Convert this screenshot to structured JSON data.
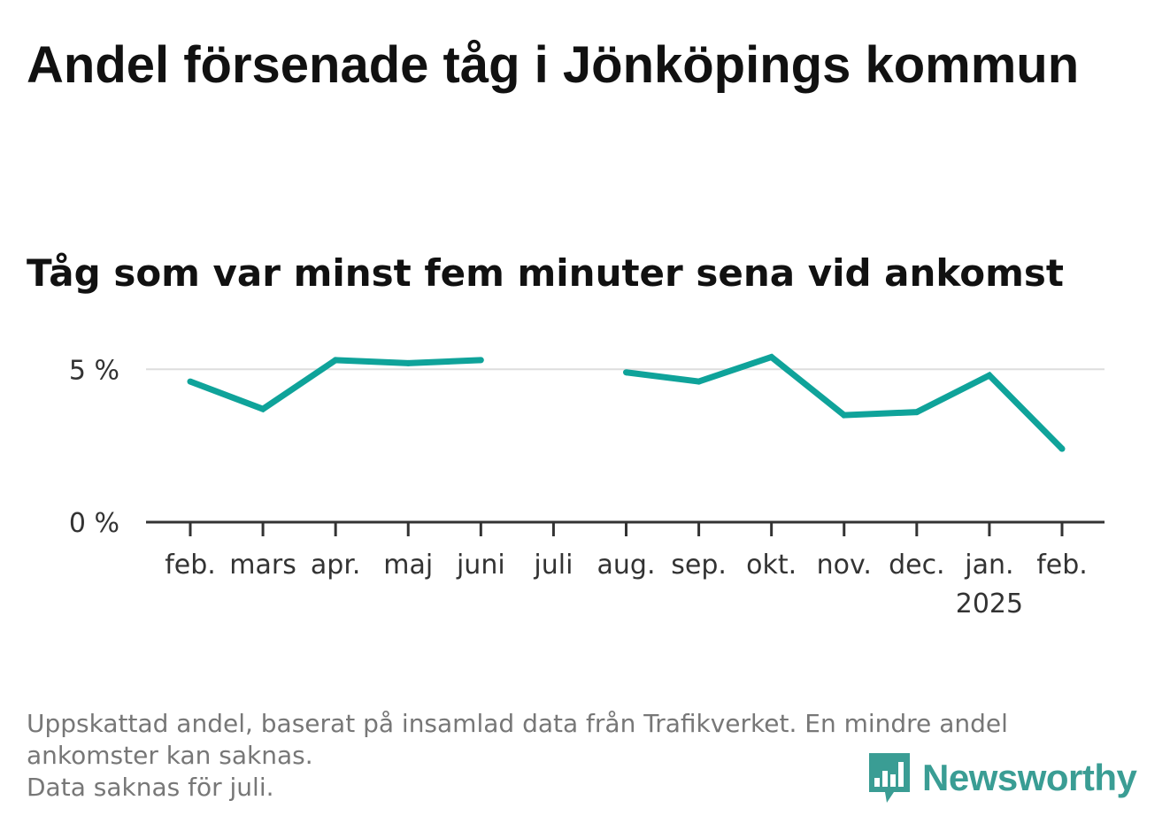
{
  "title": "Andel försenade tåg i Jönköpings kommun",
  "subtitle": "Tåg som var minst fem minuter sena vid ankomst",
  "footnote": {
    "line1": "Uppskattad andel, baserat på insamlad data från Trafikverket. En mindre andel ankomster kan saknas.",
    "line2": "Data saknas för juli."
  },
  "brand": {
    "name": "Newsworthy",
    "logo_icon": "newsworthy-chart-bubble-icon",
    "color": "#3a9d94"
  },
  "chart_data": {
    "type": "line",
    "categories": [
      "feb.",
      "mars",
      "apr.",
      "maj",
      "juni",
      "juli",
      "aug.",
      "sep.",
      "okt.",
      "nov.",
      "dec.",
      "jan.",
      "feb."
    ],
    "year_labels": [
      "",
      "",
      "",
      "",
      "",
      "",
      "",
      "",
      "",
      "",
      "",
      "2025",
      ""
    ],
    "series": [
      {
        "values": [
          4.6,
          3.7,
          5.3,
          5.2,
          5.3,
          null,
          4.9,
          4.6,
          5.4,
          3.5,
          3.6,
          4.8,
          2.4
        ],
        "color": "#0fa39a"
      }
    ],
    "y_ticks": [
      0,
      5
    ],
    "y_tick_labels": [
      "0 %",
      "5 %"
    ],
    "ylim": [
      0,
      5.5
    ],
    "grid": true,
    "missing_note": "juli"
  }
}
